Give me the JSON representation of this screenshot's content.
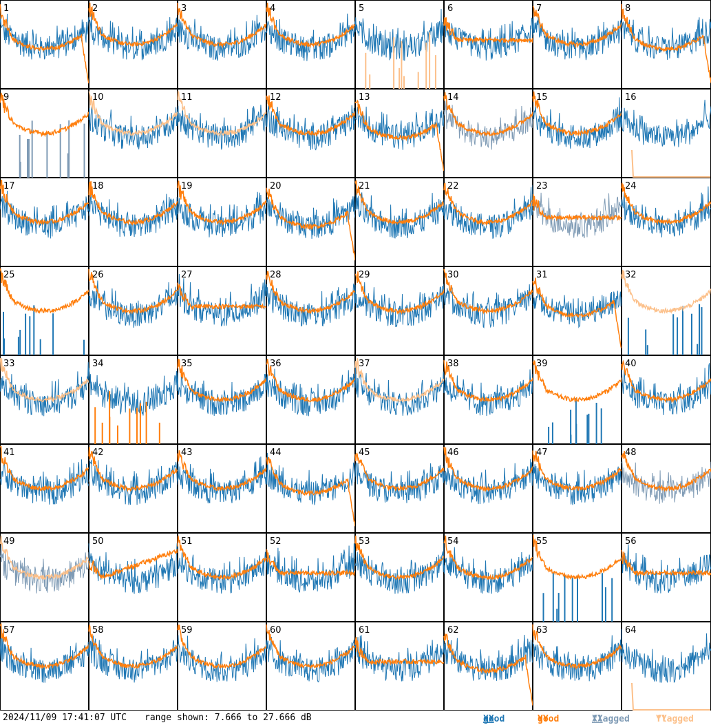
{
  "footer": {
    "timestamp": "2024/11/09 17:41:07 UTC",
    "range_text": "range shown: 7.666 to 27.666 dB",
    "legend": [
      {
        "id": "good-xx",
        "status": "good",
        "pol": "XX",
        "color": "#1f77b4"
      },
      {
        "id": "good-yy",
        "status": "good",
        "pol": "YY",
        "color": "#ff7f0e"
      },
      {
        "id": "flagged-xx",
        "status": "flagged",
        "pol": "XX",
        "color": "#7f9bb5"
      },
      {
        "id": "flagged-yy",
        "status": "flagged",
        "pol": "YY",
        "color": "#fcc08a"
      }
    ]
  },
  "chart_data": {
    "type": "line",
    "layout": "8x8 small multiples of spectra per antenna",
    "ylim_db": [
      7.666,
      27.666
    ],
    "grid": false,
    "legend_placement": "bottom-right",
    "panels": [
      {
        "id": 1,
        "xx": "good",
        "yy": "good",
        "yy_shape": "drop"
      },
      {
        "id": 2,
        "xx": "good",
        "yy": "good",
        "yy_shape": "u"
      },
      {
        "id": 3,
        "xx": "good",
        "yy": "good",
        "yy_shape": "u"
      },
      {
        "id": 4,
        "xx": "good",
        "yy": "good",
        "yy_shape": "u"
      },
      {
        "id": 5,
        "xx": "good",
        "yy": "flagged",
        "yy_shape": "spikes"
      },
      {
        "id": 6,
        "xx": "good",
        "yy": "good",
        "yy_shape": "flat"
      },
      {
        "id": 7,
        "xx": "good",
        "yy": "good",
        "yy_shape": "u"
      },
      {
        "id": 8,
        "xx": "good",
        "yy": "good",
        "yy_shape": "drop"
      },
      {
        "id": 9,
        "xx": "flagged",
        "yy": "good",
        "yy_shape": "u",
        "xx_shape": "spikes"
      },
      {
        "id": 10,
        "xx": "good",
        "yy": "flagged",
        "yy_shape": "u"
      },
      {
        "id": 11,
        "xx": "good",
        "yy": "flagged",
        "yy_shape": "u"
      },
      {
        "id": 12,
        "xx": "good",
        "yy": "good",
        "yy_shape": "u"
      },
      {
        "id": 13,
        "xx": "good",
        "yy": "good",
        "yy_shape": "drop"
      },
      {
        "id": 14,
        "xx": "flagged",
        "yy": "good",
        "yy_shape": "u"
      },
      {
        "id": 15,
        "xx": "good",
        "yy": "good",
        "yy_shape": "u"
      },
      {
        "id": 16,
        "xx": "good",
        "yy": "flagged",
        "yy_shape": "dead"
      },
      {
        "id": 17,
        "xx": "good",
        "yy": "good",
        "yy_shape": "u"
      },
      {
        "id": 18,
        "xx": "good",
        "yy": "good",
        "yy_shape": "u"
      },
      {
        "id": 19,
        "xx": "good",
        "yy": "good",
        "yy_shape": "u"
      },
      {
        "id": 20,
        "xx": "good",
        "yy": "good",
        "yy_shape": "drop"
      },
      {
        "id": 21,
        "xx": "good",
        "yy": "good",
        "yy_shape": "u"
      },
      {
        "id": 22,
        "xx": "good",
        "yy": "good",
        "yy_shape": "u"
      },
      {
        "id": 23,
        "xx": "flagged",
        "yy": "good",
        "yy_shape": "flat",
        "xx_shape": "noisy"
      },
      {
        "id": 24,
        "xx": "good",
        "yy": "good",
        "yy_shape": "u"
      },
      {
        "id": 25,
        "xx": "good",
        "yy": "good",
        "yy_shape": "u",
        "xx_shape": "spikes"
      },
      {
        "id": 26,
        "xx": "good",
        "yy": "good",
        "yy_shape": "u"
      },
      {
        "id": 27,
        "xx": "good",
        "yy": "good",
        "yy_shape": "flat"
      },
      {
        "id": 28,
        "xx": "good",
        "yy": "good",
        "yy_shape": "u"
      },
      {
        "id": 29,
        "xx": "good",
        "yy": "good",
        "yy_shape": "u"
      },
      {
        "id": 30,
        "xx": "good",
        "yy": "good",
        "yy_shape": "u"
      },
      {
        "id": 31,
        "xx": "good",
        "yy": "good",
        "yy_shape": "drop"
      },
      {
        "id": 32,
        "xx": "good",
        "yy": "flagged",
        "yy_shape": "u",
        "xx_shape": "spikes"
      },
      {
        "id": 33,
        "xx": "good",
        "yy": "flagged",
        "yy_shape": "u"
      },
      {
        "id": 34,
        "xx": "good",
        "yy": "good",
        "yy_shape": "spikes"
      },
      {
        "id": 35,
        "xx": "good",
        "yy": "good",
        "yy_shape": "u"
      },
      {
        "id": 36,
        "xx": "good",
        "yy": "good",
        "yy_shape": "u"
      },
      {
        "id": 37,
        "xx": "good",
        "yy": "flagged",
        "yy_shape": "u"
      },
      {
        "id": 38,
        "xx": "good",
        "yy": "good",
        "yy_shape": "u"
      },
      {
        "id": 39,
        "xx": "good",
        "yy": "good",
        "yy_shape": "u",
        "xx_shape": "spikes"
      },
      {
        "id": 40,
        "xx": "good",
        "yy": "good",
        "yy_shape": "u"
      },
      {
        "id": 41,
        "xx": "good",
        "yy": "good",
        "yy_shape": "u"
      },
      {
        "id": 42,
        "xx": "good",
        "yy": "good",
        "yy_shape": "u"
      },
      {
        "id": 43,
        "xx": "good",
        "yy": "good",
        "yy_shape": "u"
      },
      {
        "id": 44,
        "xx": "good",
        "yy": "good",
        "yy_shape": "drop"
      },
      {
        "id": 45,
        "xx": "good",
        "yy": "good",
        "yy_shape": "u"
      },
      {
        "id": 46,
        "xx": "good",
        "yy": "good",
        "yy_shape": "u"
      },
      {
        "id": 47,
        "xx": "good",
        "yy": "good",
        "yy_shape": "u"
      },
      {
        "id": 48,
        "xx": "flagged",
        "yy": "good",
        "yy_shape": "u"
      },
      {
        "id": 49,
        "xx": "flagged",
        "yy": "flagged",
        "yy_shape": "u"
      },
      {
        "id": 50,
        "xx": "good",
        "yy": "good",
        "yy_shape": "rise"
      },
      {
        "id": 51,
        "xx": "good",
        "yy": "good",
        "yy_shape": "u"
      },
      {
        "id": 52,
        "xx": "good",
        "yy": "good",
        "yy_shape": "flat"
      },
      {
        "id": 53,
        "xx": "good",
        "yy": "good",
        "yy_shape": "u"
      },
      {
        "id": 54,
        "xx": "good",
        "yy": "good",
        "yy_shape": "u"
      },
      {
        "id": 55,
        "xx": "good",
        "yy": "good",
        "yy_shape": "u",
        "xx_shape": "spikes"
      },
      {
        "id": 56,
        "xx": "good",
        "yy": "good",
        "yy_shape": "flat"
      },
      {
        "id": 57,
        "xx": "good",
        "yy": "good",
        "yy_shape": "u"
      },
      {
        "id": 58,
        "xx": "good",
        "yy": "good",
        "yy_shape": "u"
      },
      {
        "id": 59,
        "xx": "good",
        "yy": "good",
        "yy_shape": "u"
      },
      {
        "id": 60,
        "xx": "good",
        "yy": "good",
        "yy_shape": "u"
      },
      {
        "id": 61,
        "xx": "good",
        "yy": "good",
        "yy_shape": "flat"
      },
      {
        "id": 62,
        "xx": "good",
        "yy": "good",
        "yy_shape": "drop"
      },
      {
        "id": 63,
        "xx": "good",
        "yy": "good",
        "yy_shape": "u"
      },
      {
        "id": 64,
        "xx": "good",
        "yy": "flagged",
        "yy_shape": "dead"
      }
    ]
  }
}
